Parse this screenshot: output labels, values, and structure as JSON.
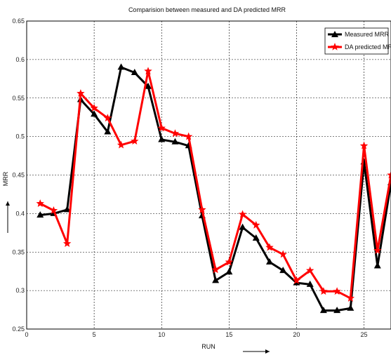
{
  "chart_data": {
    "type": "line",
    "title": "Comparision between measured and DA predicted MRR",
    "xlabel": "RUN",
    "ylabel": "MRR",
    "xlim": [
      0,
      27
    ],
    "ylim": [
      0.25,
      0.65
    ],
    "xticks": [
      0,
      5,
      10,
      15,
      20,
      25
    ],
    "yticks": [
      0.25,
      0.3,
      0.35,
      0.4,
      0.45,
      0.5,
      0.55,
      0.6,
      0.65
    ],
    "grid": true,
    "legend_position": "top-right",
    "x": [
      1,
      2,
      3,
      4,
      5,
      6,
      7,
      8,
      9,
      10,
      11,
      12,
      13,
      14,
      15,
      16,
      17,
      18,
      19,
      20,
      21,
      22,
      23,
      24,
      25,
      26,
      27
    ],
    "series": [
      {
        "name": "Measured MRR",
        "color": "#000000",
        "marker": "triangle",
        "values": [
          0.398,
          0.4,
          0.405,
          0.548,
          0.529,
          0.506,
          0.59,
          0.583,
          0.565,
          0.496,
          0.493,
          0.488,
          0.397,
          0.313,
          0.324,
          0.382,
          0.368,
          0.337,
          0.326,
          0.31,
          0.308,
          0.274,
          0.274,
          0.277,
          0.467,
          0.332,
          0.44
        ]
      },
      {
        "name": "DA predicted MRR",
        "color": "#ff0000",
        "marker": "star",
        "values": [
          0.413,
          0.404,
          0.361,
          0.556,
          0.537,
          0.524,
          0.489,
          0.494,
          0.585,
          0.511,
          0.504,
          0.5,
          0.405,
          0.327,
          0.337,
          0.399,
          0.385,
          0.356,
          0.347,
          0.313,
          0.326,
          0.299,
          0.299,
          0.29,
          0.488,
          0.352,
          0.45
        ]
      }
    ]
  }
}
